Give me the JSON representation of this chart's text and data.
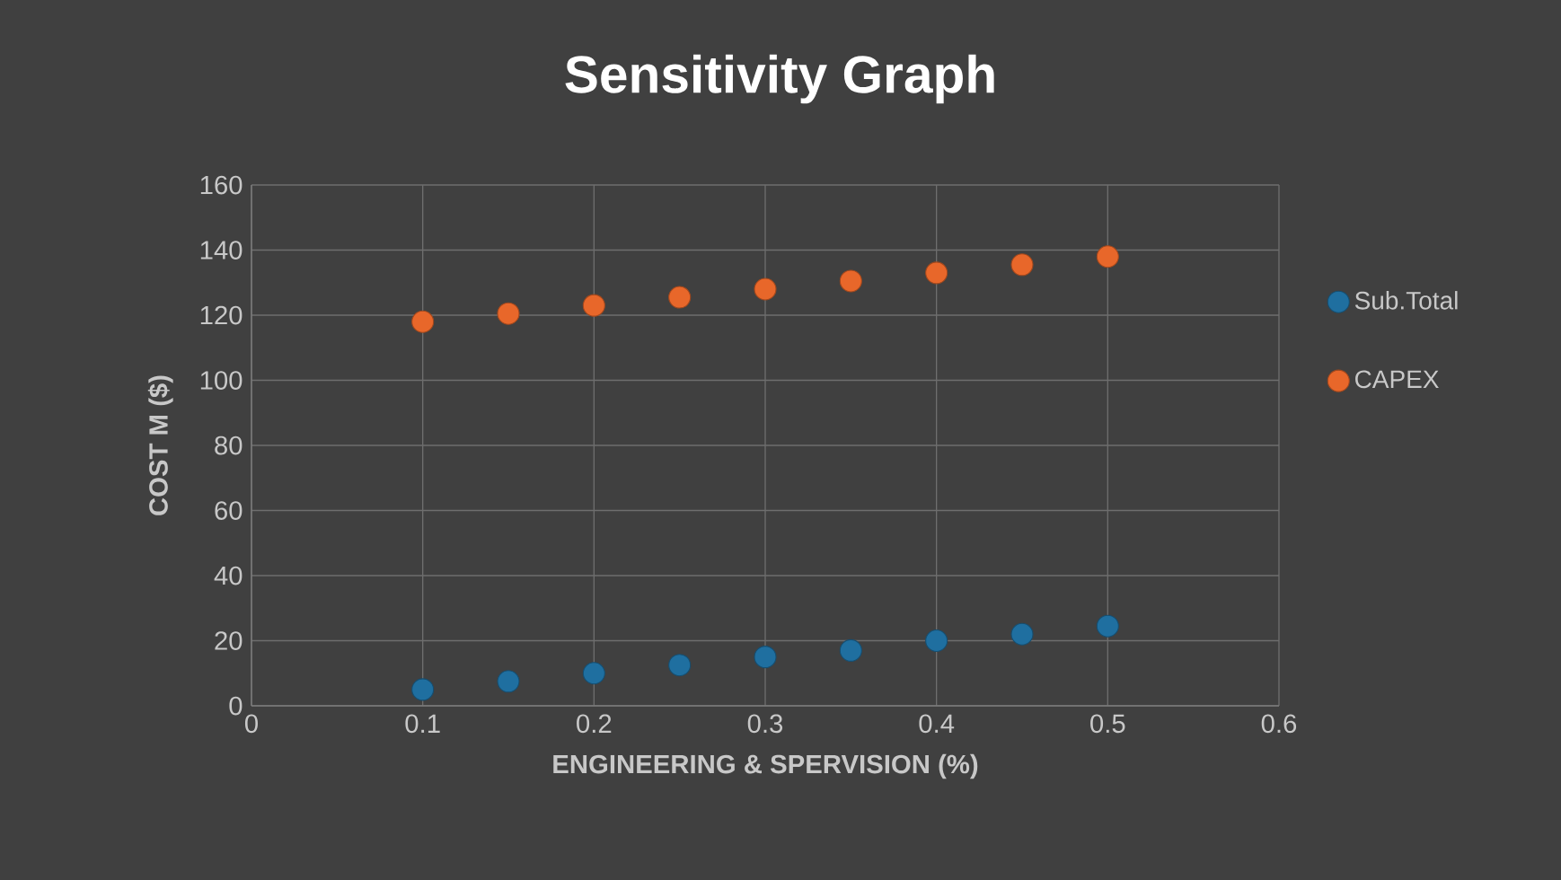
{
  "chart_data": {
    "type": "scatter",
    "title": "Sensitivity Graph",
    "xlabel": "ENGINEERING & SPERVISION (%)",
    "ylabel": "COST   M ($)",
    "x": [
      0.1,
      0.15,
      0.2,
      0.25,
      0.3,
      0.35,
      0.4,
      0.45,
      0.5
    ],
    "series": [
      {
        "name": "Sub.Total",
        "color": "#1f6fa0",
        "values": [
          5,
          7.5,
          10,
          12.5,
          15,
          17,
          20,
          22,
          24.5
        ]
      },
      {
        "name": "CAPEX",
        "color": "#e8672a",
        "values": [
          118,
          120.5,
          123,
          125.5,
          128,
          130.5,
          133,
          135.5,
          138
        ]
      }
    ],
    "xlim": [
      0,
      0.6
    ],
    "xticks": [
      0,
      0.1,
      0.2,
      0.3,
      0.4,
      0.5,
      0.6
    ],
    "ylim": [
      0,
      160
    ],
    "yticks": [
      0,
      20,
      40,
      60,
      80,
      100,
      120,
      140,
      160
    ],
    "grid": true,
    "legend": "right",
    "marker": "circle"
  }
}
